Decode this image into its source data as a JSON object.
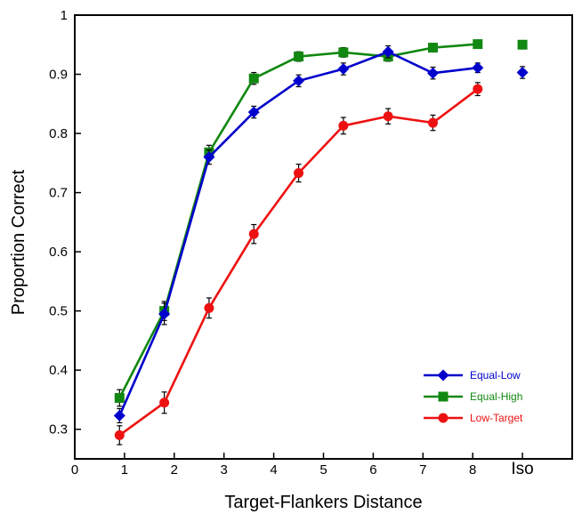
{
  "chart_data": {
    "type": "line",
    "xlabel": "Target-Flankers Distance",
    "ylabel": "Proportion Correct",
    "xlim": [
      0,
      10
    ],
    "ylim": [
      0.25,
      1.0
    ],
    "x_ticks": [
      0,
      1,
      2,
      3,
      4,
      5,
      6,
      7,
      8
    ],
    "x_ticks_extra": [
      {
        "label": "Iso",
        "x": 9.0
      }
    ],
    "y_ticks": [
      0.3,
      0.4,
      0.5,
      0.6,
      0.7,
      0.8,
      0.9,
      1
    ],
    "y_tick_labels": [
      "0.3",
      "0.4",
      "0.5",
      "0.6",
      "0.7",
      "0.8",
      "0.9",
      "1"
    ],
    "grid": false,
    "legend_position": "bottom-right",
    "series": [
      {
        "name": "Equal-Low",
        "color": "#0000cc",
        "marker": "diamond",
        "x": [
          0.9,
          1.8,
          2.7,
          3.6,
          4.5,
          5.4,
          6.3,
          7.2,
          8.1
        ],
        "y": [
          0.323,
          0.495,
          0.76,
          0.836,
          0.889,
          0.909,
          0.938,
          0.902,
          0.911
        ],
        "err": [
          0.012,
          0.018,
          0.012,
          0.01,
          0.01,
          0.01,
          0.01,
          0.01,
          0.008
        ],
        "iso": {
          "x": 9.0,
          "y": 0.903,
          "err": 0.01
        }
      },
      {
        "name": "Equal-High",
        "color": "#118811",
        "marker": "square",
        "x": [
          0.9,
          1.8,
          2.7,
          3.6,
          4.5,
          5.4,
          6.3,
          7.2,
          8.1
        ],
        "y": [
          0.353,
          0.5,
          0.768,
          0.893,
          0.93,
          0.937,
          0.93,
          0.945,
          0.951
        ],
        "err": [
          0.014,
          0.016,
          0.012,
          0.01,
          0.008,
          0.008,
          0.008,
          0.007,
          0.006
        ],
        "iso": {
          "x": 9.0,
          "y": 0.95,
          "err": 0.006
        }
      },
      {
        "name": "Low-Target",
        "color": "#ee1111",
        "marker": "circle",
        "x": [
          0.9,
          1.8,
          2.7,
          3.6,
          4.5,
          5.4,
          6.3,
          7.2,
          8.1
        ],
        "y": [
          0.29,
          0.345,
          0.505,
          0.63,
          0.733,
          0.813,
          0.829,
          0.818,
          0.875
        ],
        "err": [
          0.016,
          0.018,
          0.017,
          0.016,
          0.015,
          0.014,
          0.013,
          0.013,
          0.011
        ]
      }
    ]
  }
}
